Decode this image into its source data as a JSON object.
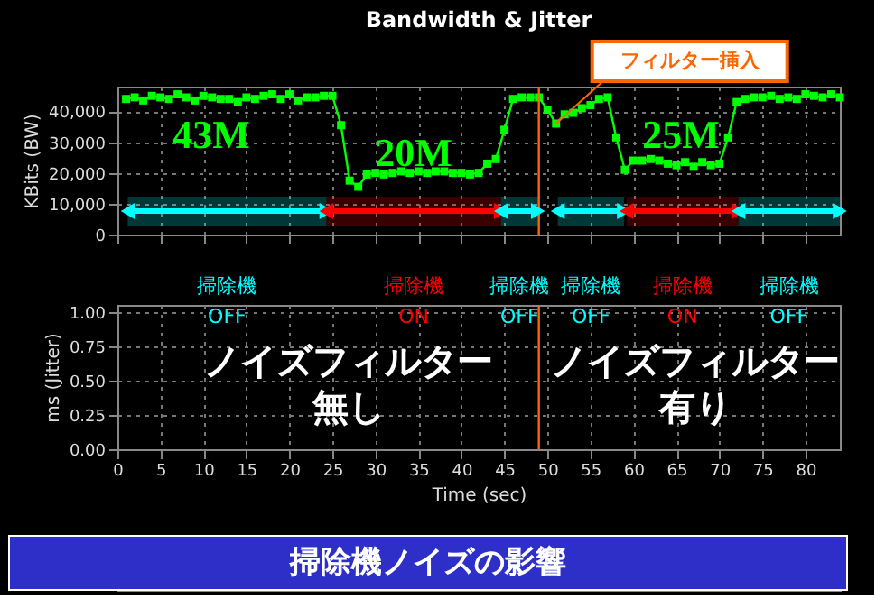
{
  "chart_data": [
    {
      "type": "line",
      "title": "Bandwidth & Jitter",
      "ylabel": "KBits (BW)",
      "x": [
        1,
        2,
        3,
        4,
        5,
        6,
        7,
        8,
        9,
        10,
        11,
        12,
        13,
        14,
        15,
        16,
        17,
        18,
        19,
        20,
        21,
        22,
        23,
        24,
        25,
        26,
        27,
        28,
        29,
        30,
        31,
        32,
        33,
        34,
        35,
        36,
        37,
        38,
        39,
        40,
        41,
        42,
        43,
        44,
        45,
        46,
        47,
        48,
        49,
        50,
        51,
        52,
        53,
        54,
        55,
        56,
        57,
        58,
        59,
        60,
        61,
        62,
        63,
        64,
        65,
        66,
        67,
        68,
        69,
        70,
        71,
        72,
        73,
        74,
        75,
        76,
        77,
        78,
        79,
        80,
        81,
        82,
        83,
        84
      ],
      "series": [
        {
          "color": "#00ff00",
          "values": [
            44000,
            44500,
            43500,
            45000,
            44500,
            44000,
            45500,
            44500,
            43500,
            45000,
            44500,
            44000,
            44000,
            43000,
            44500,
            44000,
            45000,
            45500,
            44000,
            45500,
            43500,
            44500,
            44500,
            45000,
            45000,
            35500,
            17500,
            15500,
            19500,
            20000,
            19500,
            20000,
            20500,
            20000,
            20500,
            20000,
            20500,
            20500,
            20000,
            20000,
            19500,
            20000,
            23000,
            24500,
            34000,
            44000,
            44500,
            44500,
            44500,
            40500,
            36000,
            39000,
            39500,
            41000,
            42000,
            44000,
            44500,
            31500,
            21000,
            24000,
            24000,
            24500,
            24000,
            23000,
            22500,
            23500,
            22000,
            23500,
            22500,
            23000,
            31500,
            43000,
            44000,
            44500,
            44500,
            45000,
            44000,
            44500,
            44000,
            45500,
            45000,
            44500,
            45500,
            44500
          ]
        }
      ],
      "xlim": [
        0,
        84
      ],
      "xticks": [
        0,
        5,
        10,
        15,
        20,
        25,
        30,
        35,
        40,
        45,
        50,
        55,
        60,
        65,
        70,
        75,
        80
      ],
      "ylim": [
        0,
        48000
      ],
      "yticks": [
        {
          "value": 0,
          "label": "0"
        },
        {
          "value": 10000,
          "label": "10,000"
        },
        {
          "value": 20000,
          "label": "20,000"
        },
        {
          "value": 30000,
          "label": "30,000"
        },
        {
          "value": 40000,
          "label": "40,000"
        }
      ],
      "tick_labels": "y",
      "grid": true,
      "marker": "square",
      "line_style": "solid",
      "bands": [
        {
          "axis": "x",
          "from": 1.2,
          "to": 24.3,
          "label": "掃除機\nOFF",
          "color": "#00ffff"
        },
        {
          "axis": "x",
          "from": 24.3,
          "to": 44.6,
          "label": "掃除機\nON",
          "color": "#ff0000"
        },
        {
          "axis": "x",
          "from": 44.6,
          "to": 48.9,
          "label": "掃除機\nOFF",
          "color": "#00ffff"
        },
        {
          "axis": "x",
          "from": 51.2,
          "to": 58.9,
          "label": "掃除機\nOFF",
          "color": "#00ffff"
        },
        {
          "axis": "x",
          "from": 59.2,
          "to": 72.2,
          "label": "掃除機\nON",
          "color": "#ff0000"
        },
        {
          "axis": "x",
          "from": 72.2,
          "to": 84,
          "label": "掃除機\nOFF",
          "color": "#00ffff"
        }
      ],
      "ref_lines": [
        {
          "axis": "x",
          "value": 49,
          "color": "#ff6600"
        }
      ],
      "annotations": [
        "43M",
        "20M",
        "25M",
        {
          "text": "フィルター挿入",
          "x": 51,
          "y": 36000
        }
      ]
    },
    {
      "type": "line",
      "xlabel": "Time (sec)",
      "ylabel": "ms (Jitter)",
      "xlim": [
        0,
        84
      ],
      "xticks": [
        0,
        5,
        10,
        15,
        20,
        25,
        30,
        35,
        40,
        45,
        50,
        55,
        60,
        65,
        70,
        75,
        80
      ],
      "ylim": [
        0,
        1.05
      ],
      "yticks": [
        {
          "value": 0,
          "label": "0.00"
        },
        {
          "value": 0.25,
          "label": "0.25"
        },
        {
          "value": 0.5,
          "label": "0.50"
        },
        {
          "value": 0.75,
          "label": "0.75"
        },
        {
          "value": 1,
          "label": "1.00"
        }
      ],
      "grid": true,
      "ref_lines": [
        {
          "axis": "x",
          "value": 49,
          "color": "#ff6600"
        }
      ],
      "annotations": [
        "ノイズフィルター",
        "無し",
        "ノイズフィルター",
        "有り",
        "掃除機ノイズの影響"
      ]
    }
  ]
}
